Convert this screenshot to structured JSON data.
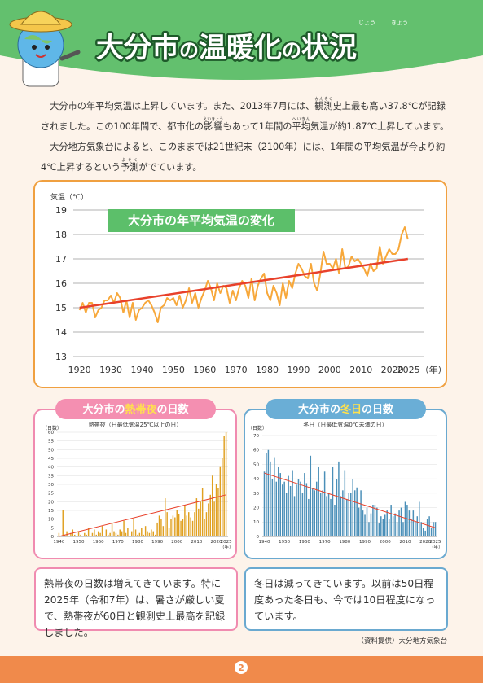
{
  "header": {
    "title": [
      "大分市",
      "の",
      "温暖化",
      "の",
      "状況"
    ],
    "ruby": [
      "じょう",
      "きょう"
    ]
  },
  "intro": [
    [
      "大分市の年平均気温は上昇しています。また、2013年7月には、",
      {
        "text": "観測",
        "ruby": "かんそく"
      },
      "史上最も高い37.8℃が記録されました。この100年間で、都市化の",
      {
        "text": "影響",
        "ruby": "えいきょう"
      },
      "もあって1年間の",
      {
        "text": "平均",
        "ruby": "へいきん"
      },
      "気温が約1.87℃上昇しています。"
    ],
    [
      "大分地方気象台によると、このままでは21世紀末（2100年）には、1年間の平均気温が今より約4℃上昇するという",
      {
        "text": "予測",
        "ruby": "よそく"
      },
      "がでています。"
    ]
  ],
  "chart_data": [
    {
      "type": "line",
      "title": "大分市の年平均気温の変化",
      "ylabel": "気温（℃）",
      "xlim": [
        1918,
        2030
      ],
      "ylim": [
        13,
        19
      ],
      "yticks": [
        13,
        14,
        15,
        16,
        17,
        18,
        19
      ],
      "xticks": [
        1920,
        1930,
        1940,
        1950,
        1960,
        1970,
        1980,
        1990,
        2000,
        2010,
        2020,
        {
          "value": 2025,
          "label": "2025（年）"
        }
      ],
      "grid": true,
      "x": [
        1920,
        1921,
        1922,
        1923,
        1924,
        1925,
        1926,
        1927,
        1928,
        1929,
        1930,
        1931,
        1932,
        1933,
        1934,
        1935,
        1936,
        1937,
        1938,
        1939,
        1940,
        1941,
        1942,
        1943,
        1944,
        1945,
        1946,
        1947,
        1948,
        1949,
        1950,
        1951,
        1952,
        1953,
        1954,
        1955,
        1956,
        1957,
        1958,
        1959,
        1960,
        1961,
        1962,
        1963,
        1964,
        1965,
        1966,
        1967,
        1968,
        1969,
        1970,
        1971,
        1972,
        1973,
        1974,
        1975,
        1976,
        1977,
        1978,
        1979,
        1980,
        1981,
        1982,
        1983,
        1984,
        1985,
        1986,
        1987,
        1988,
        1989,
        1990,
        1991,
        1992,
        1993,
        1994,
        1995,
        1996,
        1997,
        1998,
        1999,
        2000,
        2001,
        2002,
        2003,
        2004,
        2005,
        2006,
        2007,
        2008,
        2009,
        2010,
        2011,
        2012,
        2013,
        2014,
        2015,
        2016,
        2017,
        2018,
        2019,
        2020,
        2021,
        2022,
        2023,
        2024,
        2025
      ],
      "series": [
        {
          "color": "#f7a83b",
          "values": [
            14.9,
            15.2,
            14.8,
            15.2,
            15.2,
            14.6,
            14.9,
            15.0,
            15.3,
            15.3,
            15.5,
            15.2,
            15.6,
            15.4,
            14.8,
            15.3,
            14.6,
            15.2,
            14.5,
            14.9,
            15.0,
            15.2,
            15.3,
            15.1,
            14.8,
            14.4,
            15.0,
            15.1,
            15.4,
            15.3,
            15.4,
            15.1,
            15.5,
            15.0,
            15.3,
            15.8,
            15.2,
            15.6,
            15.0,
            15.4,
            15.7,
            16.1,
            15.8,
            15.3,
            16.0,
            15.6,
            15.9,
            15.8,
            15.2,
            15.7,
            15.3,
            15.8,
            16.1,
            15.9,
            15.4,
            16.2,
            15.3,
            15.9,
            16.2,
            16.4,
            15.6,
            15.3,
            15.9,
            15.6,
            15.1,
            16.0,
            15.4,
            16.1,
            15.8,
            16.4,
            16.8,
            16.6,
            16.3,
            16.2,
            16.8,
            16.0,
            15.7,
            16.4,
            17.3,
            16.8,
            16.8,
            16.6,
            17.0,
            16.4,
            17.4,
            16.6,
            16.7,
            17.1,
            16.9,
            17.0,
            16.8,
            16.6,
            16.3,
            16.8,
            16.5,
            16.6,
            17.5,
            16.8,
            17.1,
            17.4,
            17.2,
            17.2,
            17.4,
            18.0,
            18.3,
            17.8
          ]
        },
        {
          "color": "#e8412b",
          "x": [
            1920,
            2025
          ],
          "values": [
            15.0,
            17.0
          ]
        }
      ]
    },
    {
      "type": "bar",
      "title": [
        "大分市の",
        "熱帯夜",
        "の日数"
      ],
      "subtitle": "熱帯夜（日最低気温25℃以上の日）",
      "ylabel": "（日数）",
      "xlabel": "（年）",
      "xlim": [
        1939,
        2026
      ],
      "ylim": [
        0,
        60
      ],
      "yticks": [
        0,
        5,
        10,
        15,
        20,
        25,
        30,
        35,
        40,
        45,
        50,
        55,
        60
      ],
      "xticks": [
        1940,
        1950,
        1960,
        1970,
        1980,
        1990,
        2000,
        2010,
        2020,
        2025
      ],
      "grid": true,
      "x": [
        1940,
        1941,
        1942,
        1943,
        1944,
        1945,
        1946,
        1947,
        1948,
        1949,
        1950,
        1951,
        1952,
        1953,
        1954,
        1955,
        1956,
        1957,
        1958,
        1959,
        1960,
        1961,
        1962,
        1963,
        1964,
        1965,
        1966,
        1967,
        1968,
        1969,
        1970,
        1971,
        1972,
        1973,
        1974,
        1975,
        1976,
        1977,
        1978,
        1979,
        1980,
        1981,
        1982,
        1983,
        1984,
        1985,
        1986,
        1987,
        1988,
        1989,
        1990,
        1991,
        1992,
        1993,
        1994,
        1995,
        1996,
        1997,
        1998,
        1999,
        2000,
        2001,
        2002,
        2003,
        2004,
        2005,
        2006,
        2007,
        2008,
        2009,
        2010,
        2011,
        2012,
        2013,
        2014,
        2015,
        2016,
        2017,
        2018,
        2019,
        2020,
        2021,
        2022,
        2023,
        2024,
        2025
      ],
      "series": [
        {
          "color": "#e0a020",
          "values": [
            2,
            0,
            15,
            1,
            3,
            0,
            2,
            4,
            1,
            0,
            3,
            1,
            0,
            2,
            1,
            5,
            0,
            2,
            4,
            1,
            3,
            2,
            6,
            0,
            4,
            1,
            2,
            8,
            3,
            2,
            1,
            4,
            3,
            9,
            2,
            5,
            0,
            3,
            10,
            4,
            1,
            2,
            5,
            1,
            6,
            3,
            2,
            4,
            3,
            1,
            8,
            12,
            10,
            6,
            22,
            14,
            5,
            10,
            12,
            11,
            15,
            13,
            9,
            10,
            18,
            12,
            14,
            11,
            9,
            14,
            22,
            16,
            20,
            28,
            10,
            14,
            19,
            24,
            35,
            20,
            30,
            28,
            40,
            45,
            58,
            60
          ]
        }
      ],
      "trend": {
        "color": "#e8412b",
        "x": [
          1940,
          2025
        ],
        "values": [
          0,
          24
        ]
      }
    },
    {
      "type": "bar",
      "title": [
        "大分市の",
        "冬日",
        "の日数"
      ],
      "subtitle": "冬日（日最低気温0℃未満の日）",
      "ylabel": "（日数）",
      "xlabel": "（年）",
      "xlim": [
        1939,
        2026
      ],
      "ylim": [
        0,
        70
      ],
      "yticks": [
        0,
        10,
        20,
        30,
        40,
        50,
        60,
        70
      ],
      "xticks": [
        1940,
        1950,
        1960,
        1970,
        1980,
        1990,
        2000,
        2010,
        2020,
        2025
      ],
      "grid": true,
      "x": [
        1940,
        1941,
        1942,
        1943,
        1944,
        1945,
        1946,
        1947,
        1948,
        1949,
        1950,
        1951,
        1952,
        1953,
        1954,
        1955,
        1956,
        1957,
        1958,
        1959,
        1960,
        1961,
        1962,
        1963,
        1964,
        1965,
        1966,
        1967,
        1968,
        1969,
        1970,
        1971,
        1972,
        1973,
        1974,
        1975,
        1976,
        1977,
        1978,
        1979,
        1980,
        1981,
        1982,
        1983,
        1984,
        1985,
        1986,
        1987,
        1988,
        1989,
        1990,
        1991,
        1992,
        1993,
        1994,
        1995,
        1996,
        1997,
        1998,
        1999,
        2000,
        2001,
        2002,
        2003,
        2004,
        2005,
        2006,
        2007,
        2008,
        2009,
        2010,
        2011,
        2012,
        2013,
        2014,
        2015,
        2016,
        2017,
        2018,
        2019,
        2020,
        2021,
        2022,
        2023,
        2024,
        2025
      ],
      "series": [
        {
          "color": "#4a8fb8",
          "values": [
            45,
            58,
            60,
            52,
            40,
            55,
            38,
            48,
            44,
            36,
            38,
            30,
            42,
            35,
            46,
            28,
            36,
            40,
            38,
            30,
            44,
            37,
            26,
            56,
            33,
            32,
            38,
            48,
            30,
            32,
            45,
            28,
            30,
            26,
            48,
            22,
            40,
            52,
            28,
            32,
            46,
            26,
            30,
            30,
            40,
            32,
            34,
            20,
            32,
            18,
            15,
            20,
            10,
            16,
            22,
            22,
            20,
            9,
            14,
            12,
            15,
            18,
            12,
            22,
            14,
            16,
            10,
            18,
            20,
            10,
            24,
            22,
            18,
            12,
            18,
            10,
            14,
            24,
            10,
            6,
            4,
            12,
            14,
            6,
            10,
            10
          ]
        }
      ],
      "trend": {
        "color": "#e8412b",
        "x": [
          1940,
          2025
        ],
        "values": [
          44,
          6
        ]
      }
    }
  ],
  "notes": [
    "熱帯夜の日数は増えてきています。特に2025年（令和7年）は、暑さが厳しい夏で、熱帯夜が60日と観測史上最高を記録しました。",
    "冬日は減ってきています。以前は50日程度あった冬日も、今では10日程度になっています。"
  ],
  "source": "（資料提供）大分地方気象台",
  "page_number": "2"
}
